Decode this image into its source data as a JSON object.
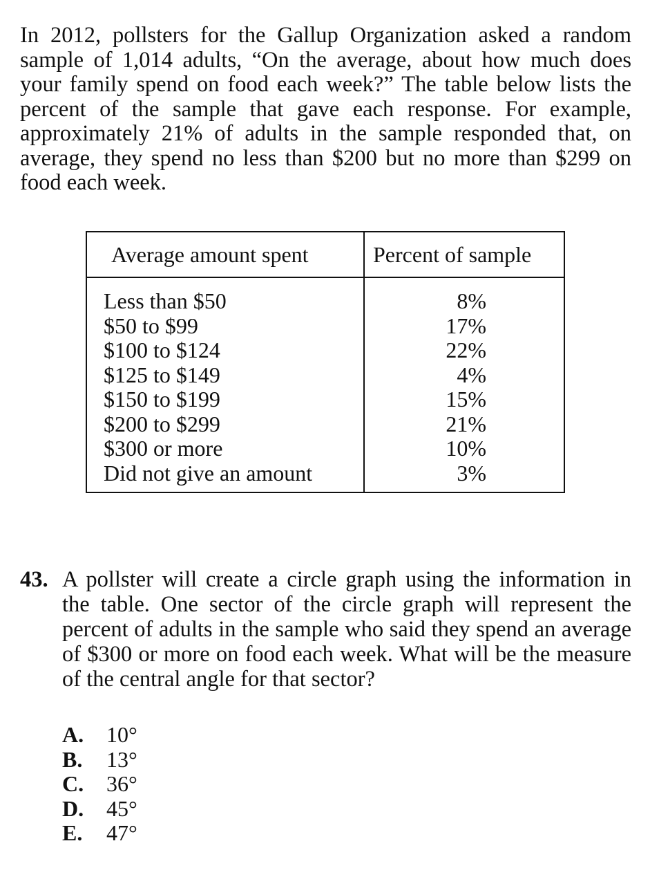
{
  "intro": {
    "text": "In 2012, pollsters for the Gallup Organization asked a random sample of 1,014 adults, “On the average, about how much does your family spend on food each week?” The table below lists the percent of the sample that gave each response. For example, approximately 21% of adults in the sample responded that, on average, they spend no less than $200 but no more than $299 on food each week."
  },
  "table": {
    "headers": {
      "amount": "Average amount spent",
      "percent": "Percent of sample"
    },
    "rows": [
      {
        "amount": "Less than $50",
        "percent": "8%"
      },
      {
        "amount": "$50 to $99",
        "percent": "17%"
      },
      {
        "amount": "$100 to $124",
        "percent": "22%"
      },
      {
        "amount": "$125 to $149",
        "percent": "4%"
      },
      {
        "amount": "$150 to $199",
        "percent": "15%"
      },
      {
        "amount": "$200 to $299",
        "percent": "21%"
      },
      {
        "amount": "$300 or more",
        "percent": "10%"
      },
      {
        "amount": "Did not give an amount",
        "percent": "3%"
      }
    ]
  },
  "question": {
    "number": "43.",
    "text": "A pollster will create a circle graph using the information in the table. One sector of the circle graph will represent the percent of adults in the sample who said they spend an average of $300 or more on food each week. What will be the measure of the central angle for that sector?",
    "choices": [
      {
        "letter": "A.",
        "value": "10°"
      },
      {
        "letter": "B.",
        "value": "13°"
      },
      {
        "letter": "C.",
        "value": "36°"
      },
      {
        "letter": "D.",
        "value": "45°"
      },
      {
        "letter": "E.",
        "value": "47°"
      }
    ]
  }
}
